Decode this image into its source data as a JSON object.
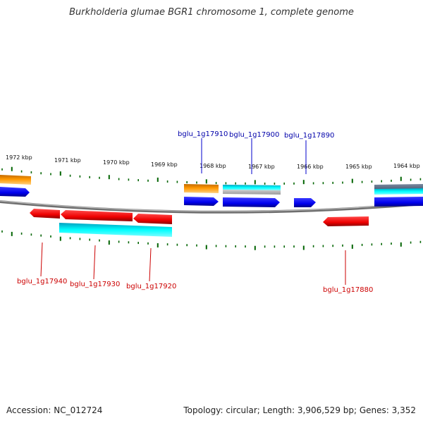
{
  "title": "Burkholderia glumae BGR1 chromosome 1, complete genome",
  "footer": {
    "accession": "Accession: NC_012724",
    "summary": "Topology: circular; Length: 3,906,529 bp; Genes: 3,352"
  },
  "ticks": [
    "1972 kbp",
    "1971 kbp",
    "1970 kbp",
    "1969 kbp",
    "1968 kbp",
    "1967 kbp",
    "1966 kbp",
    "1965 kbp",
    "1964 kbp"
  ],
  "gene_labels_top": [
    "bglu_1g17910",
    "bglu_1g17900",
    "bglu_1g17890"
  ],
  "gene_labels_bottom": [
    "bglu_1g17940",
    "bglu_1g17930",
    "bglu_1g17920",
    "bglu_1g17880"
  ],
  "colors": {
    "forward_gene": "#0000ff",
    "reverse_gene": "#ff0000",
    "cds_cyan": "#00ffff",
    "cds_orange": "#ff9900",
    "rna_gray": "#aaaaaa",
    "tick_green": "#006400",
    "backbone": "#888888",
    "label_blue": "#0000aa",
    "label_red": "#cc0000"
  }
}
